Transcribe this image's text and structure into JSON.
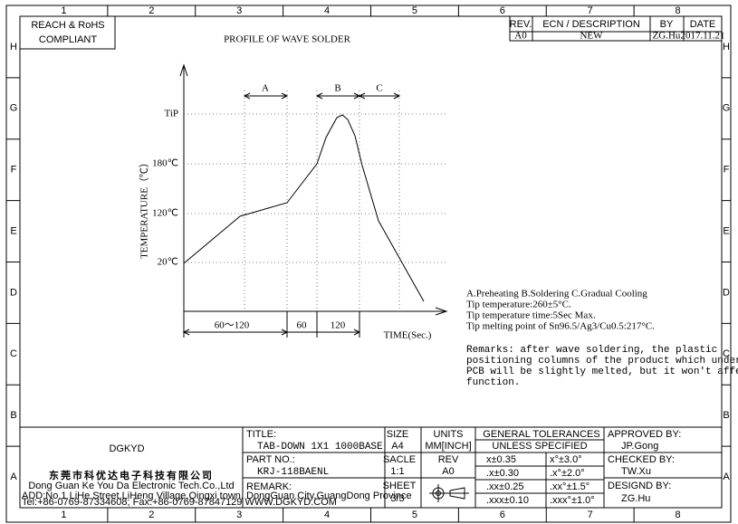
{
  "border": {
    "columns": [
      "1",
      "2",
      "3",
      "4",
      "5",
      "6",
      "7",
      "8"
    ],
    "rows": [
      "H",
      "G",
      "F",
      "E",
      "D",
      "C",
      "B",
      "A"
    ]
  },
  "compliance": {
    "line1": "REACH & RoHS",
    "line2": "COMPLIANT"
  },
  "revision": {
    "headers": [
      "REV.",
      "ECN / DESCRIPTION",
      "BY",
      "DATE"
    ],
    "row": [
      "A0",
      "NEW",
      "ZG.Hu",
      "2017.11.21"
    ]
  },
  "title": "PROFILE OF WAVE SOLDER",
  "profile": {
    "y_axis_label": "TEMPERATURE（℃）",
    "y_labels": [
      "TiP",
      "180℃",
      "120℃",
      "20℃"
    ],
    "zones": [
      "A",
      "B",
      "C"
    ],
    "durations": [
      "60～120",
      "60",
      "120"
    ],
    "x_axis_label": "TIME(Sec.)"
  },
  "notes": [
    "A.Preheating  B.Soldering  C.Gradual Cooling",
    "Tip temperature:260±5°C.",
    "Tip temperature time:5Sec Max.",
    "Tip melting point of Sn96.5/Ag3/Cu0.5:217°C."
  ],
  "remarks": [
    "Remarks: after wave soldering, the plastic",
    "positioning columns of the product  which under the",
    "PCB will be slightly melted, but it won't affect its",
    "function."
  ],
  "company": {
    "logo": "DGKYD",
    "name_cn": "东莞市科优达电子科技有限公司",
    "name_en": "Dong Guan Ke You Da Electronic Tech.Co.,Ltd",
    "address": "ADD:No.1 LiHe Street,LiHeng Village,Qingxi town, DongGuan City,GuangDong Province",
    "contact": "Tel:+86-0769-87334608; Fax:+86-0769-87847129  WWW.DGKYD.COM"
  },
  "title_block": {
    "title_label": "TITLE:",
    "title_value": "TAB-DOWN 1X1 1000BASE",
    "part_label": "PART NO.:",
    "part_value": "KRJ-118BAENL",
    "remark_label": "REMARK:",
    "size_label": "SIZE",
    "size_value": "A4",
    "units_label": "UNITS",
    "units_value": "MM[INCH]",
    "scale_label": "SACLE",
    "scale_value": "1:1",
    "rev_label": "REV",
    "rev_value": "A0",
    "sheet_label": "SHEET",
    "sheet_value": "3/3",
    "tolerance_title": [
      "GENERAL TOLERANCES",
      "UNLESS SPECIFIED"
    ],
    "tolerances": [
      [
        "x±0.35",
        "x°±3.0°"
      ],
      [
        ".x±0.30",
        ".x°±2.0°"
      ],
      [
        ".xx±0.25",
        ".xx°±1.5°"
      ],
      [
        ".xxx±0.10",
        ".xxx°±1.0°"
      ]
    ],
    "approved_label": "APPROVED BY:",
    "approved_value": "JP.Gong",
    "checked_label": "CHECKED BY:",
    "checked_value": "TW.Xu",
    "designed_label": "DESIGND BY:",
    "designed_value": "ZG.Hu"
  }
}
